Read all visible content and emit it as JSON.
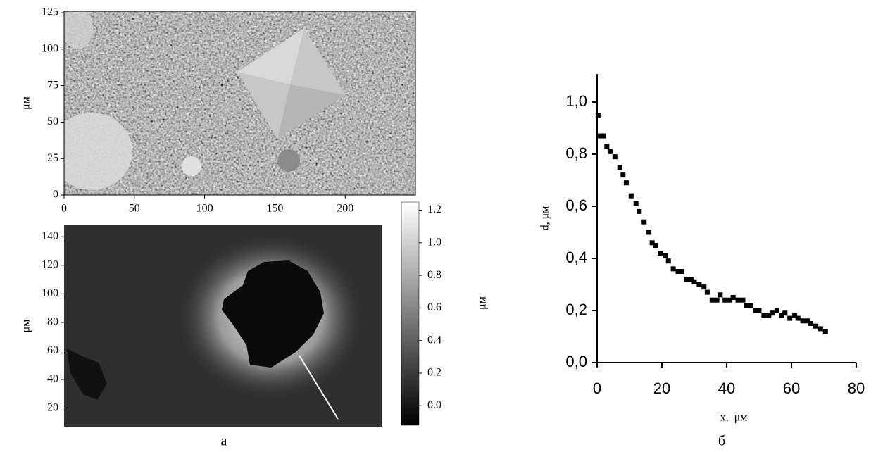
{
  "chart_data": [
    {
      "type": "image",
      "ylabel": "μм",
      "xlim": [
        0,
        250
      ],
      "ylim": [
        0,
        126
      ],
      "xticks": [
        0,
        50,
        100,
        150,
        200
      ],
      "yticks": [
        0,
        25,
        50,
        75,
        100,
        125
      ]
    },
    {
      "type": "image",
      "ylabel": "μм",
      "ylim": [
        7,
        148
      ],
      "yticks": [
        20,
        40,
        60,
        80,
        100,
        120,
        140
      ],
      "colorbar": {
        "label": "μм",
        "lim": [
          -0.12,
          1.25
        ],
        "ticks": [
          {
            "value": 0,
            "label": "0.0"
          },
          0.2,
          0.4,
          0.6,
          0.8,
          {
            "value": 1,
            "label": "1.0"
          },
          1.2
        ]
      },
      "caption": "а"
    },
    {
      "type": "scatter",
      "xlabel": "x,  μм",
      "ylabel": "d, μм",
      "caption": "б",
      "color": "#000000",
      "xlim": [
        0,
        80
      ],
      "ylim": [
        0,
        1.108
      ],
      "xticks": [
        0,
        20,
        40,
        60,
        80
      ],
      "yticks": [
        {
          "value": 0,
          "label": "0,0"
        },
        {
          "value": 0.2,
          "label": "0,2"
        },
        {
          "value": 0.4,
          "label": "0,4"
        },
        {
          "value": 0.6,
          "label": "0,6"
        },
        {
          "value": 0.8,
          "label": "0,8"
        },
        {
          "value": 1,
          "label": "1,0"
        }
      ],
      "x": [
        0.3,
        1,
        2,
        3,
        4,
        5.5,
        7,
        8,
        9,
        10.5,
        12,
        13,
        14.5,
        16,
        17,
        18,
        19.5,
        21,
        22,
        23.5,
        25,
        26,
        27.5,
        29,
        30,
        31.5,
        33,
        34,
        35.5,
        37,
        38,
        39.5,
        41,
        42,
        43.5,
        45,
        46,
        47.5,
        49,
        50,
        51.5,
        53,
        54,
        55.5,
        57,
        58,
        59.5,
        61,
        62,
        63.5,
        65,
        66,
        67.5,
        69,
        70.5
      ],
      "values": [
        0.95,
        0.87,
        0.87,
        0.83,
        0.81,
        0.79,
        0.75,
        0.72,
        0.69,
        0.64,
        0.61,
        0.58,
        0.54,
        0.5,
        0.46,
        0.45,
        0.42,
        0.41,
        0.39,
        0.36,
        0.35,
        0.35,
        0.32,
        0.32,
        0.31,
        0.3,
        0.29,
        0.27,
        0.24,
        0.24,
        0.26,
        0.24,
        0.24,
        0.25,
        0.24,
        0.24,
        0.22,
        0.22,
        0.2,
        0.2,
        0.18,
        0.18,
        0.19,
        0.2,
        0.18,
        0.19,
        0.17,
        0.18,
        0.17,
        0.16,
        0.16,
        0.15,
        0.14,
        0.13,
        0.12
      ]
    }
  ]
}
